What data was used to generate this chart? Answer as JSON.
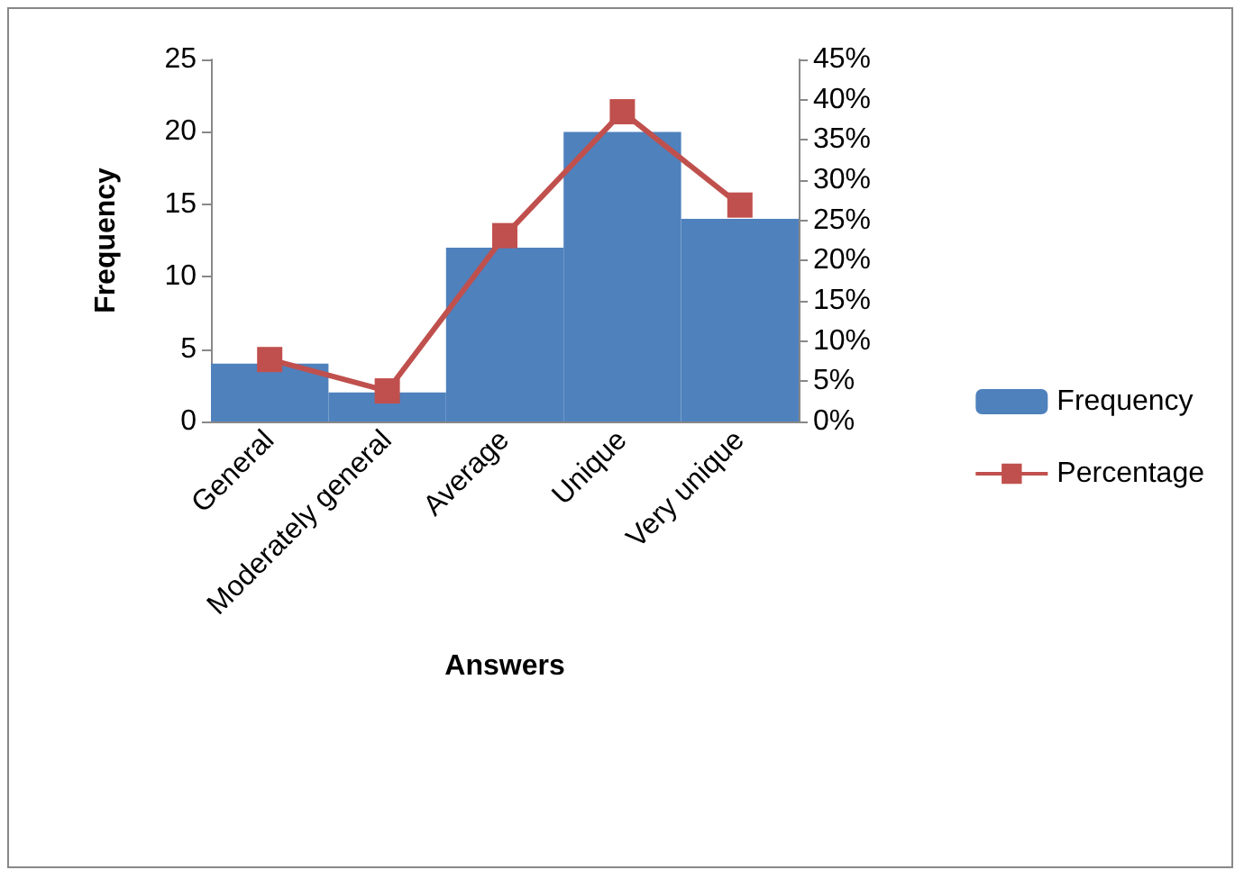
{
  "chart_data": {
    "type": "bar",
    "xlabel": "Answers",
    "ylabel": "Frequency",
    "categories": [
      "General",
      "Moderately general",
      "Average",
      "Unique",
      "Very unique"
    ],
    "series": [
      {
        "name": "Frequency",
        "color": "#4f81bd",
        "values": [
          4,
          2,
          12,
          20,
          14
        ]
      },
      {
        "name": "Percentage",
        "type": "line",
        "axis": "y2",
        "color": "#c0504d",
        "marker": "square",
        "values": [
          7.7,
          3.8,
          23.1,
          38.5,
          26.9
        ]
      }
    ],
    "ylim": [
      0,
      25
    ],
    "yticks": [
      0,
      5,
      10,
      15,
      20,
      25
    ],
    "y2lim": [
      0,
      45
    ],
    "y2ticks": [
      {
        "value": 0,
        "label": "0%"
      },
      {
        "value": 5,
        "label": "5%"
      },
      {
        "value": 10,
        "label": "10%"
      },
      {
        "value": 15,
        "label": "15%"
      },
      {
        "value": 20,
        "label": "20%"
      },
      {
        "value": 25,
        "label": "25%"
      },
      {
        "value": 30,
        "label": "30%"
      },
      {
        "value": 35,
        "label": "35%"
      },
      {
        "value": 40,
        "label": "40%"
      },
      {
        "value": 45,
        "label": "45%"
      }
    ],
    "grid": false,
    "legend": "right"
  }
}
